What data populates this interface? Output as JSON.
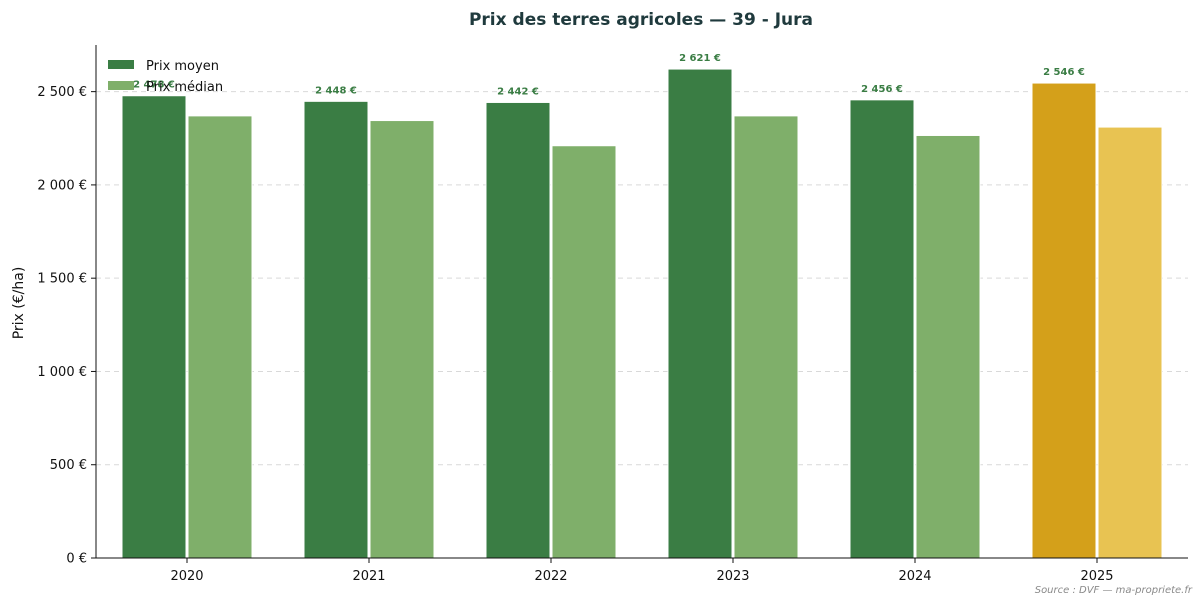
{
  "chart_data": {
    "type": "bar",
    "title": "Prix des terres agricoles — 39 - Jura",
    "ylabel": "Prix (€/ha)",
    "xlabel": "",
    "categories": [
      "2020",
      "2021",
      "2022",
      "2023",
      "2024",
      "2025"
    ],
    "series": [
      {
        "name": "Prix moyen",
        "values": [
          2478,
          2448,
          2442,
          2621,
          2456,
          2546
        ],
        "labels": [
          "2 478 €",
          "2 448 €",
          "2 442 €",
          "2 621 €",
          "2 456 €",
          "2 546 €"
        ],
        "color": "#3a7d44",
        "highlight_color": "#d4a01a"
      },
      {
        "name": "Prix médian",
        "values": [
          2370,
          2345,
          2210,
          2370,
          2265,
          2310
        ],
        "color": "#7faf6a",
        "highlight_color": "#e8c352"
      }
    ],
    "highlight_category": "2025",
    "ylim": [
      0,
      2750
    ],
    "yticks": [
      0,
      500,
      1000,
      1500,
      2000,
      2500
    ],
    "ytick_labels": [
      "0 €",
      "500 €",
      "1 000 €",
      "1 500 €",
      "2 000 €",
      "2 500 €"
    ],
    "grid": "horizontal dashed",
    "legend_position": "top-left",
    "data_label_color": "#3a7d44",
    "source": "Source : DVF — ma-propriete.fr"
  }
}
